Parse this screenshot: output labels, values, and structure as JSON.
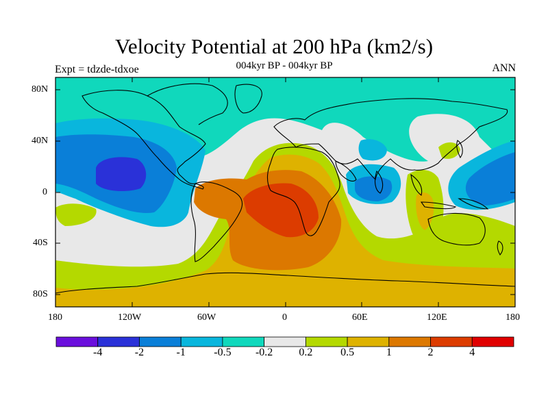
{
  "title": "Velocity Potential at 200 hPa (km2/s)",
  "subtitle": "004kyr BP - 004kyr BP",
  "left_label": "Expt = tdzde-tdxoe",
  "right_label": "ANN",
  "lat_ticks": [
    "80N",
    "40N",
    "0",
    "40S",
    "80S"
  ],
  "lon_ticks": [
    "180",
    "120W",
    "60W",
    "0",
    "60E",
    "120E",
    "180"
  ],
  "colorbar": {
    "colors": [
      "#6a0fdc",
      "#2a31d8",
      "#0a7fd8",
      "#09b6dd",
      "#10d8bc",
      "#e8e8e8",
      "#b4d900",
      "#deb200",
      "#dc7800",
      "#dc3c00",
      "#e00000"
    ],
    "labels": [
      "-4",
      "-2",
      "-1",
      "-0.5",
      "-0.2",
      "0.2",
      "0.5",
      "1",
      "2",
      "4"
    ]
  }
}
